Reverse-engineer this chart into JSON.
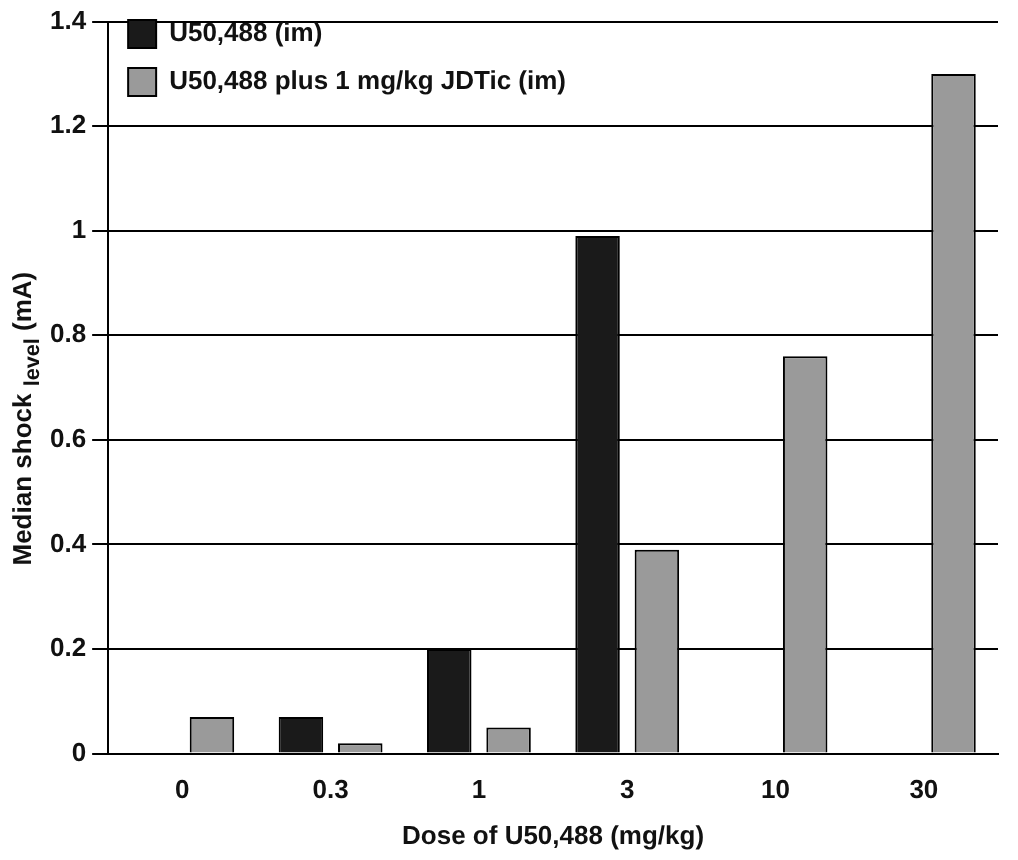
{
  "chart_data": {
    "type": "bar",
    "xlabel": "Dose of U50,488 (mg/kg)",
    "ylabel": "Median shock $_{level}$ (mA)",
    "categories": [
      "0",
      "0.3",
      "1",
      "3",
      "10",
      "30"
    ],
    "series": [
      {
        "name": "U50,488 (im)",
        "color": "#1a1a1a",
        "values": [
          0,
          0.07,
          0.2,
          0.99,
          0,
          0
        ]
      },
      {
        "name": "U50,488 plus 1 mg/kg JDTic (im)",
        "color": "#9a9a9a",
        "values": [
          0.07,
          0.02,
          0.05,
          0.39,
          0.76,
          1.3
        ]
      }
    ],
    "ylim": [
      0,
      1.4
    ],
    "yticks": [
      0,
      0.2,
      0.4,
      0.6,
      0.8,
      1,
      1.2,
      1.4
    ],
    "grid": "y",
    "legend": "top left"
  }
}
